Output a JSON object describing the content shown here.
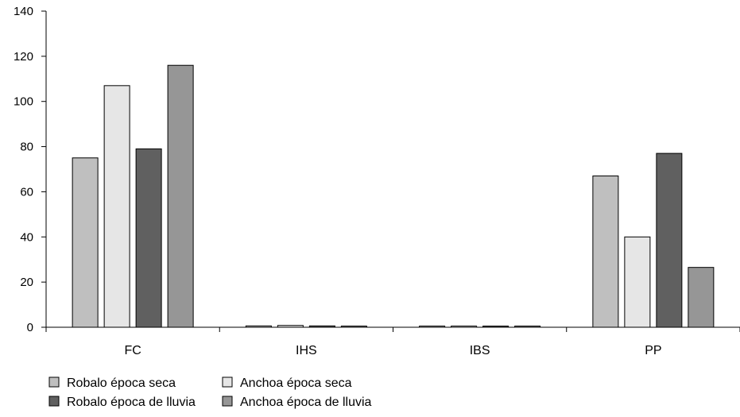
{
  "chart_data": {
    "type": "bar",
    "categories": [
      "FC",
      "IHS",
      "IBS",
      "PP"
    ],
    "ylim": [
      0,
      140
    ],
    "yticks": [
      0,
      20,
      40,
      60,
      80,
      100,
      120,
      140
    ],
    "grid": false,
    "legend_position": "bottom-left",
    "series": [
      {
        "name": "Robalo época seca",
        "color": "#bfbfbf",
        "values": [
          75,
          0.6,
          0.2,
          67
        ]
      },
      {
        "name": "Anchoa época seca",
        "color": "#e6e6e6",
        "values": [
          107,
          0.8,
          0.2,
          40
        ]
      },
      {
        "name": "Robalo época de lluvia",
        "color": "#606060",
        "values": [
          79,
          0.6,
          0.2,
          77
        ]
      },
      {
        "name": "Anchoa época de lluvia",
        "color": "#969696",
        "values": [
          116,
          0.5,
          0.2,
          26.5
        ]
      }
    ]
  }
}
